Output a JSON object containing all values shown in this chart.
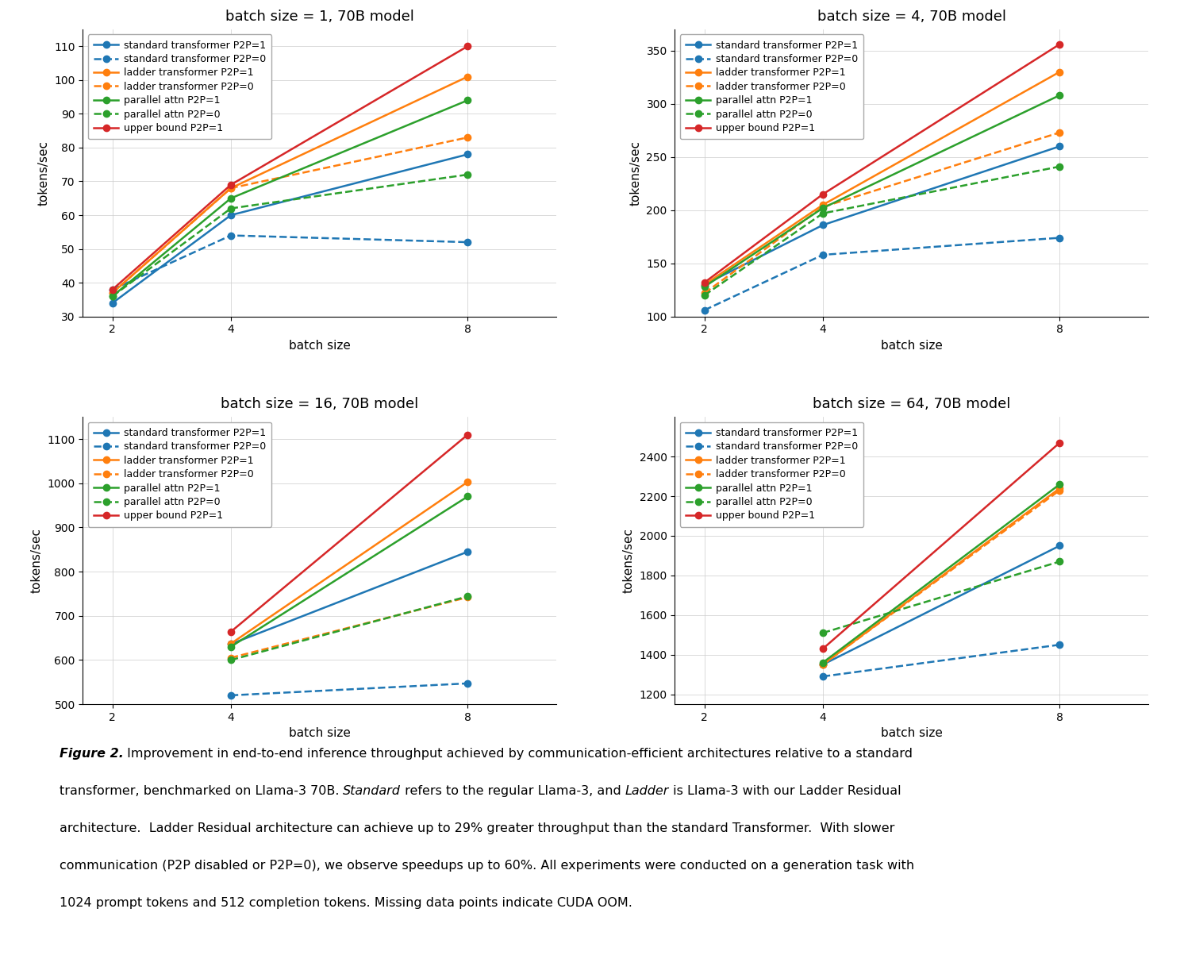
{
  "subplots": [
    {
      "title": "batch size = 1, 70B model",
      "x": [
        2,
        4,
        8
      ],
      "series": [
        {
          "label": "standard transformer P2P=1",
          "color": "#1f77b4",
          "linestyle": "-",
          "marker": "o",
          "y": [
            34,
            60,
            78
          ]
        },
        {
          "label": "standard transformer P2P=0",
          "color": "#1f77b4",
          "linestyle": "--",
          "marker": "o",
          "y": [
            38,
            54,
            52
          ]
        },
        {
          "label": "ladder transformer P2P=1",
          "color": "#ff7f0e",
          "linestyle": "-",
          "marker": "o",
          "y": [
            37,
            68,
            101
          ]
        },
        {
          "label": "ladder transformer P2P=0",
          "color": "#ff7f0e",
          "linestyle": "--",
          "marker": "o",
          "y": [
            37,
            68,
            83
          ]
        },
        {
          "label": "parallel attn P2P=1",
          "color": "#2ca02c",
          "linestyle": "-",
          "marker": "o",
          "y": [
            36,
            65,
            94
          ]
        },
        {
          "label": "parallel attn P2P=0",
          "color": "#2ca02c",
          "linestyle": "--",
          "marker": "o",
          "y": [
            36,
            62,
            72
          ]
        },
        {
          "label": "upper bound P2P=1",
          "color": "#d62728",
          "linestyle": "-",
          "marker": "o",
          "y": [
            38,
            69,
            110
          ]
        }
      ],
      "ylim": [
        30,
        115
      ],
      "yticks": [
        30,
        40,
        50,
        60,
        70,
        80,
        90,
        100,
        110
      ],
      "xticks": [
        2,
        4,
        8
      ]
    },
    {
      "title": "batch size = 4, 70B model",
      "x": [
        2,
        4,
        8
      ],
      "series": [
        {
          "label": "standard transformer P2P=1",
          "color": "#1f77b4",
          "linestyle": "-",
          "marker": "o",
          "y": [
            130,
            186,
            260
          ]
        },
        {
          "label": "standard transformer P2P=0",
          "color": "#1f77b4",
          "linestyle": "--",
          "marker": "o",
          "y": [
            106,
            158,
            174
          ]
        },
        {
          "label": "ladder transformer P2P=1",
          "color": "#ff7f0e",
          "linestyle": "-",
          "marker": "o",
          "y": [
            130,
            205,
            330
          ]
        },
        {
          "label": "ladder transformer P2P=0",
          "color": "#ff7f0e",
          "linestyle": "--",
          "marker": "o",
          "y": [
            122,
            203,
            273
          ]
        },
        {
          "label": "parallel attn P2P=1",
          "color": "#2ca02c",
          "linestyle": "-",
          "marker": "o",
          "y": [
            128,
            202,
            308
          ]
        },
        {
          "label": "parallel attn P2P=0",
          "color": "#2ca02c",
          "linestyle": "--",
          "marker": "o",
          "y": [
            120,
            197,
            241
          ]
        },
        {
          "label": "upper bound P2P=1",
          "color": "#d62728",
          "linestyle": "-",
          "marker": "o",
          "y": [
            132,
            215,
            356
          ]
        }
      ],
      "ylim": [
        100,
        370
      ],
      "yticks": [
        100,
        150,
        200,
        250,
        300,
        350
      ],
      "xticks": [
        2,
        4,
        8
      ]
    },
    {
      "title": "batch size = 16, 70B model",
      "x": [
        2,
        4,
        8
      ],
      "series": [
        {
          "label": "standard transformer P2P=1",
          "color": "#1f77b4",
          "linestyle": "-",
          "marker": "o",
          "y": [
            null,
            636,
            845
          ]
        },
        {
          "label": "standard transformer P2P=0",
          "color": "#1f77b4",
          "linestyle": "--",
          "marker": "o",
          "y": [
            null,
            520,
            547
          ]
        },
        {
          "label": "ladder transformer P2P=1",
          "color": "#ff7f0e",
          "linestyle": "-",
          "marker": "o",
          "y": [
            null,
            637,
            1003
          ]
        },
        {
          "label": "ladder transformer P2P=0",
          "color": "#ff7f0e",
          "linestyle": "--",
          "marker": "o",
          "y": [
            null,
            605,
            742
          ]
        },
        {
          "label": "parallel attn P2P=1",
          "color": "#2ca02c",
          "linestyle": "-",
          "marker": "o",
          "y": [
            null,
            630,
            970
          ]
        },
        {
          "label": "parallel attn P2P=0",
          "color": "#2ca02c",
          "linestyle": "--",
          "marker": "o",
          "y": [
            null,
            600,
            744
          ]
        },
        {
          "label": "upper bound P2P=1",
          "color": "#d62728",
          "linestyle": "-",
          "marker": "o",
          "y": [
            null,
            664,
            1110
          ]
        }
      ],
      "ylim": [
        500,
        1150
      ],
      "yticks": [
        500,
        600,
        700,
        800,
        900,
        1000,
        1100
      ],
      "xticks": [
        2,
        4,
        8
      ]
    },
    {
      "title": "batch size = 64, 70B model",
      "x": [
        2,
        4,
        8
      ],
      "series": [
        {
          "label": "standard transformer P2P=1",
          "color": "#1f77b4",
          "linestyle": "-",
          "marker": "o",
          "y": [
            null,
            1350,
            1950
          ]
        },
        {
          "label": "standard transformer P2P=0",
          "color": "#1f77b4",
          "linestyle": "--",
          "marker": "o",
          "y": [
            null,
            1290,
            1450
          ]
        },
        {
          "label": "ladder transformer P2P=1",
          "color": "#ff7f0e",
          "linestyle": "-",
          "marker": "o",
          "y": [
            null,
            1350,
            2240
          ]
        },
        {
          "label": "ladder transformer P2P=0",
          "color": "#ff7f0e",
          "linestyle": "--",
          "marker": "o",
          "y": [
            null,
            1350,
            2230
          ]
        },
        {
          "label": "parallel attn P2P=1",
          "color": "#2ca02c",
          "linestyle": "-",
          "marker": "o",
          "y": [
            null,
            1360,
            2260
          ]
        },
        {
          "label": "parallel attn P2P=0",
          "color": "#2ca02c",
          "linestyle": "--",
          "marker": "o",
          "y": [
            null,
            1510,
            1870
          ]
        },
        {
          "label": "upper bound P2P=1",
          "color": "#d62728",
          "linestyle": "-",
          "marker": "o",
          "y": [
            null,
            1430,
            2470
          ]
        }
      ],
      "ylim": [
        1150,
        2600
      ],
      "yticks": [
        1200,
        1400,
        1600,
        1800,
        2000,
        2200,
        2400
      ],
      "xticks": [
        2,
        4,
        8
      ]
    }
  ],
  "xlabel": "batch size",
  "ylabel": "tokens/sec",
  "caption_prefix": "Figure 2.",
  "caption_body": " Improvement in end-to-end inference throughput achieved by communication-efficient architectures relative to a standard transformer, benchmarked on Llama-3 70B. ",
  "caption_standard": "Standard",
  "caption_mid1": " refers to the regular Llama-3, and ",
  "caption_ladder": "Ladder",
  "caption_mid2": " is Llama-3 with our Ladder Residual architecture.  Ladder Residual architecture can achieve up to 29% greater throughput than the standard Transformer.  With slower communication (P2P disabled or P2P=0), we observe speedups up to 60%. All experiments were conducted on a generation task with 1024 prompt tokens and 512 completion tokens. Missing data points indicate CUDA OOM."
}
